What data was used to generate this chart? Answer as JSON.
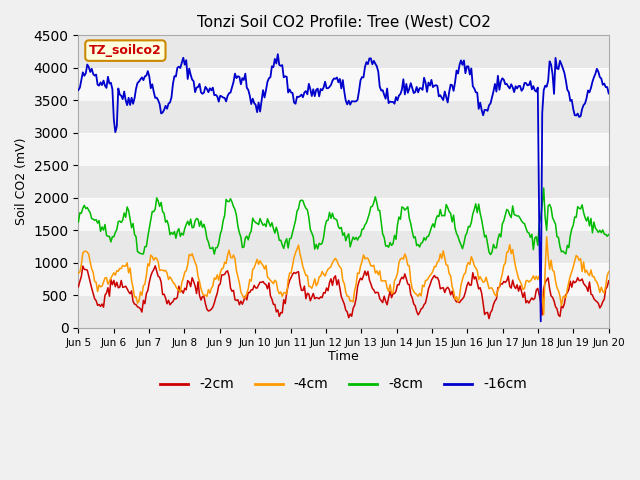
{
  "title": "Tonzi Soil CO2 Profile: Tree (West) CO2",
  "ylabel": "Soil CO2 (mV)",
  "xlabel": "Time",
  "label_box": "TZ_soilco2",
  "ylim": [
    0,
    4500
  ],
  "colors": {
    "-2cm": "#cc0000",
    "-4cm": "#ff9900",
    "-8cm": "#00bb00",
    "-16cm": "#0000cc"
  },
  "legend_labels": [
    "-2cm",
    "-4cm",
    "-8cm",
    "-16cm"
  ],
  "xtick_labels": [
    "Jun 5",
    "Jun 6",
    "Jun 7",
    "Jun 8",
    "Jun 9",
    "Jun 10",
    "Jun 11",
    "Jun 12",
    "Jun 13",
    "Jun 14",
    "Jun 15",
    "Jun 16",
    "Jun 17",
    "Jun 18",
    "Jun 19",
    "Jun 20"
  ],
  "band_color_light": "#e8e8e8",
  "band_color_white": "#f8f8f8",
  "fig_bg": "#f0f0f0",
  "title_fontsize": 11,
  "axis_fontsize": 9,
  "legend_fontsize": 10,
  "yticks": [
    0,
    500,
    1000,
    1500,
    2000,
    2500,
    3000,
    3500,
    4000,
    4500
  ]
}
